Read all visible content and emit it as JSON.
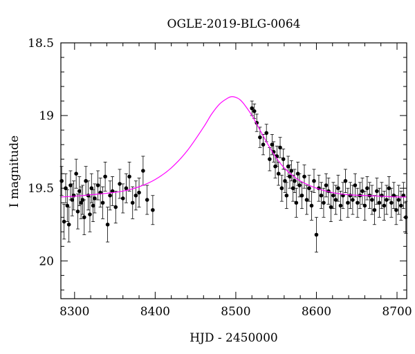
{
  "chart_data": {
    "type": "scatter",
    "title": "OGLE-2019-BLG-0064",
    "xlabel": "HJD - 2450000",
    "ylabel": "I magnitude",
    "xlim": [
      8283,
      8712
    ],
    "ylim": [
      20.26,
      18.5
    ],
    "y_inverted": true,
    "x_ticks": [
      8300,
      8400,
      8500,
      8600,
      8700
    ],
    "x_tick_labels": [
      "8300",
      "8400",
      "8500",
      "8600",
      "8700"
    ],
    "y_ticks": [
      18.5,
      19,
      19.5,
      20
    ],
    "y_tick_labels": [
      "18.5",
      "19",
      "19.5",
      "20"
    ],
    "grid": false,
    "legend": "none",
    "colors": {
      "points": "#000000",
      "model": "#ff00ff"
    },
    "series": [
      {
        "kind": "observations",
        "x": [
          8284,
          8287,
          8289,
          8291,
          8293,
          8295,
          8297,
          8299,
          8302,
          8304,
          8306,
          8308,
          8310,
          8312,
          8314,
          8317,
          8319,
          8321,
          8323,
          8325,
          8329,
          8332,
          8335,
          8338,
          8341,
          8344,
          8347,
          8351,
          8356,
          8360,
          8364,
          8368,
          8372,
          8376,
          8380,
          8385,
          8390,
          8397,
          8520,
          8523,
          8526,
          8530,
          8534,
          8538,
          8542,
          8545,
          8547,
          8549,
          8551,
          8553,
          8555,
          8557,
          8559,
          8561,
          8563,
          8565,
          8567,
          8569,
          8571,
          8573,
          8575,
          8577,
          8579,
          8582,
          8585,
          8588,
          8591,
          8594,
          8597,
          8600,
          8603,
          8606,
          8609,
          8612,
          8615,
          8618,
          8621,
          8624,
          8627,
          8630,
          8633,
          8636,
          8639,
          8642,
          8645,
          8648,
          8651,
          8654,
          8657,
          8660,
          8663,
          8666,
          8669,
          8672,
          8675,
          8678,
          8681,
          8684,
          8687,
          8690,
          8693,
          8696,
          8699,
          8702,
          8705,
          8708,
          8711
        ],
        "y": [
          19.45,
          19.73,
          19.5,
          19.62,
          19.75,
          19.48,
          19.58,
          19.55,
          19.4,
          19.66,
          19.52,
          19.6,
          19.58,
          19.7,
          19.45,
          19.55,
          19.68,
          19.5,
          19.62,
          19.57,
          19.48,
          19.53,
          19.6,
          19.42,
          19.75,
          19.55,
          19.52,
          19.63,
          19.47,
          19.57,
          19.5,
          19.42,
          19.6,
          19.55,
          19.53,
          19.38,
          19.58,
          19.65,
          18.95,
          18.97,
          19.05,
          19.15,
          19.2,
          19.12,
          19.3,
          19.2,
          19.25,
          19.35,
          19.28,
          19.4,
          19.22,
          19.5,
          19.3,
          19.45,
          19.55,
          19.35,
          19.42,
          19.38,
          19.5,
          19.45,
          19.6,
          19.4,
          19.48,
          19.55,
          19.42,
          19.58,
          19.5,
          19.62,
          19.45,
          19.82,
          19.5,
          19.55,
          19.6,
          19.48,
          19.52,
          19.63,
          19.55,
          19.58,
          19.5,
          19.62,
          19.55,
          19.45,
          19.6,
          19.55,
          19.58,
          19.48,
          19.6,
          19.55,
          19.52,
          19.62,
          19.5,
          19.55,
          19.58,
          19.65,
          19.52,
          19.6,
          19.55,
          19.62,
          19.58,
          19.5,
          19.6,
          19.55,
          19.65,
          19.58,
          19.62,
          19.55,
          19.7
        ],
        "err": [
          0.1,
          0.12,
          0.1,
          0.11,
          0.12,
          0.1,
          0.11,
          0.1,
          0.1,
          0.12,
          0.1,
          0.11,
          0.1,
          0.12,
          0.1,
          0.1,
          0.12,
          0.1,
          0.11,
          0.1,
          0.1,
          0.1,
          0.11,
          0.1,
          0.12,
          0.1,
          0.1,
          0.11,
          0.1,
          0.1,
          0.1,
          0.1,
          0.11,
          0.1,
          0.1,
          0.1,
          0.1,
          0.1,
          0.05,
          0.05,
          0.06,
          0.07,
          0.07,
          0.06,
          0.08,
          0.07,
          0.07,
          0.08,
          0.07,
          0.08,
          0.07,
          0.09,
          0.07,
          0.08,
          0.09,
          0.07,
          0.08,
          0.07,
          0.09,
          0.08,
          0.1,
          0.08,
          0.08,
          0.09,
          0.08,
          0.1,
          0.09,
          0.1,
          0.08,
          0.12,
          0.09,
          0.09,
          0.1,
          0.08,
          0.09,
          0.1,
          0.09,
          0.1,
          0.09,
          0.1,
          0.09,
          0.08,
          0.1,
          0.09,
          0.1,
          0.08,
          0.1,
          0.09,
          0.09,
          0.1,
          0.08,
          0.09,
          0.1,
          0.1,
          0.09,
          0.1,
          0.09,
          0.1,
          0.1,
          0.08,
          0.1,
          0.09,
          0.1,
          0.1,
          0.1,
          0.09,
          0.11
        ]
      },
      {
        "kind": "model",
        "x": [
          8283,
          8300,
          8320,
          8340,
          8360,
          8380,
          8400,
          8420,
          8440,
          8460,
          8470,
          8480,
          8490,
          8495,
          8500,
          8505,
          8510,
          8520,
          8530,
          8540,
          8550,
          8560,
          8570,
          8580,
          8600,
          8620,
          8640,
          8660,
          8680,
          8700,
          8712
        ],
        "y": [
          19.56,
          19.555,
          19.545,
          19.535,
          19.52,
          19.49,
          19.44,
          19.36,
          19.24,
          19.08,
          18.99,
          18.92,
          18.88,
          18.87,
          18.875,
          18.89,
          18.92,
          19.0,
          19.1,
          19.2,
          19.29,
          19.36,
          19.41,
          19.45,
          19.5,
          19.53,
          19.545,
          19.55,
          19.555,
          19.56,
          19.56
        ]
      }
    ]
  }
}
